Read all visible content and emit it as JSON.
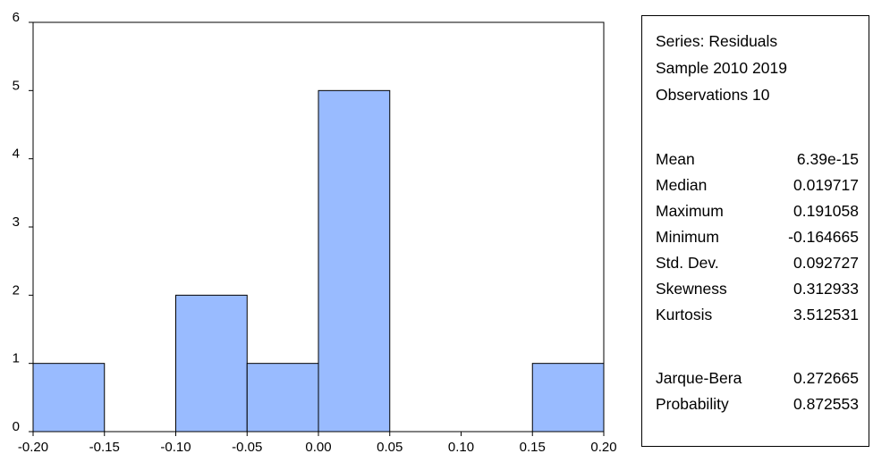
{
  "chart_data": {
    "type": "bar",
    "subtype": "histogram",
    "bins": [
      {
        "from": -0.2,
        "to": -0.15,
        "count": 1
      },
      {
        "from": -0.15,
        "to": -0.1,
        "count": 0
      },
      {
        "from": -0.1,
        "to": -0.05,
        "count": 2
      },
      {
        "from": -0.05,
        "to": 0.0,
        "count": 1
      },
      {
        "from": 0.0,
        "to": 0.05,
        "count": 5
      },
      {
        "from": 0.05,
        "to": 0.1,
        "count": 0
      },
      {
        "from": 0.1,
        "to": 0.15,
        "count": 0
      },
      {
        "from": 0.15,
        "to": 0.2,
        "count": 1
      }
    ],
    "xlim": [
      -0.2,
      0.2
    ],
    "ylim": [
      0,
      6
    ],
    "x_ticks": [
      "-0.20",
      "-0.15",
      "-0.10",
      "-0.05",
      "0.00",
      "0.05",
      "0.10",
      "0.15",
      "0.20"
    ],
    "y_ticks": [
      "0",
      "1",
      "2",
      "3",
      "4",
      "5",
      "6"
    ],
    "grid": false,
    "bar_color": "#99bbff",
    "title": "",
    "xlabel": "",
    "ylabel": ""
  },
  "stats": {
    "header": [
      "Series: Residuals",
      "Sample 2010 2019",
      "Observations 10"
    ],
    "rows": [
      {
        "label": "Mean",
        "value": "6.39e-15"
      },
      {
        "label": "Median",
        "value": "0.019717"
      },
      {
        "label": "Maximum",
        "value": "0.191058"
      },
      {
        "label": "Minimum",
        "value": "-0.164665"
      },
      {
        "label": "Std. Dev.",
        "value": "0.092727"
      },
      {
        "label": "Skewness",
        "value": "0.312933"
      },
      {
        "label": "Kurtosis",
        "value": "3.512531"
      }
    ],
    "tests": [
      {
        "label": "Jarque-Bera",
        "value": "0.272665"
      },
      {
        "label": "Probability",
        "value": "0.872553"
      }
    ]
  }
}
